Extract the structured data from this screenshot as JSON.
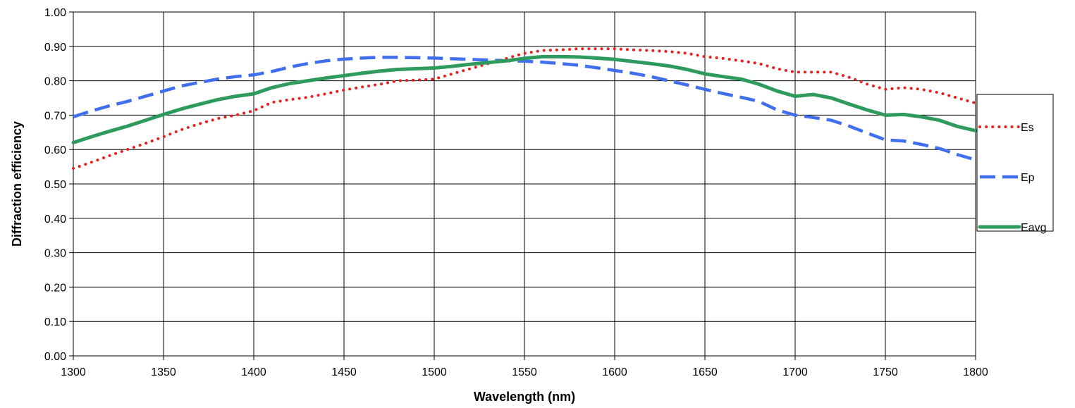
{
  "chart_data": {
    "type": "line",
    "title": "",
    "xlabel": "Wavelength (nm)",
    "ylabel": "Diffraction efficiency",
    "xlim": [
      1300,
      1800
    ],
    "ylim": [
      0,
      1
    ],
    "x_ticks": [
      "1300",
      "1350",
      "1400",
      "1450",
      "1500",
      "1550",
      "1600",
      "1650",
      "1700",
      "1750",
      "1800"
    ],
    "y_ticks": [
      "0.00",
      "0.10",
      "0.20",
      "0.30",
      "0.40",
      "0.50",
      "0.60",
      "0.70",
      "0.80",
      "0.90",
      "1.00"
    ],
    "grid": true,
    "legend_position": "right",
    "x": [
      1300,
      1310,
      1320,
      1330,
      1340,
      1350,
      1360,
      1370,
      1380,
      1390,
      1400,
      1410,
      1420,
      1430,
      1440,
      1450,
      1460,
      1470,
      1480,
      1490,
      1500,
      1510,
      1520,
      1530,
      1540,
      1550,
      1560,
      1570,
      1580,
      1590,
      1600,
      1610,
      1620,
      1630,
      1640,
      1650,
      1660,
      1670,
      1680,
      1690,
      1700,
      1710,
      1720,
      1730,
      1740,
      1750,
      1760,
      1770,
      1780,
      1790,
      1800
    ],
    "series": [
      {
        "name": "Es",
        "color": "#e8201e",
        "style": "dotted",
        "values": [
          0.545,
          0.563,
          0.582,
          0.6,
          0.618,
          0.637,
          0.658,
          0.675,
          0.69,
          0.7,
          0.713,
          0.737,
          0.745,
          0.752,
          0.762,
          0.773,
          0.782,
          0.79,
          0.8,
          0.802,
          0.805,
          0.82,
          0.835,
          0.85,
          0.865,
          0.88,
          0.888,
          0.89,
          0.893,
          0.893,
          0.893,
          0.89,
          0.888,
          0.885,
          0.88,
          0.87,
          0.865,
          0.858,
          0.85,
          0.835,
          0.825,
          0.825,
          0.825,
          0.81,
          0.79,
          0.775,
          0.78,
          0.775,
          0.765,
          0.75,
          0.735
        ]
      },
      {
        "name": "Ep",
        "color": "#3f6fec",
        "style": "dashed",
        "values": [
          0.695,
          0.712,
          0.727,
          0.74,
          0.755,
          0.77,
          0.785,
          0.795,
          0.805,
          0.812,
          0.817,
          0.827,
          0.84,
          0.85,
          0.858,
          0.863,
          0.866,
          0.868,
          0.868,
          0.867,
          0.866,
          0.864,
          0.862,
          0.86,
          0.858,
          0.857,
          0.854,
          0.85,
          0.845,
          0.838,
          0.83,
          0.822,
          0.812,
          0.8,
          0.788,
          0.775,
          0.763,
          0.752,
          0.74,
          0.715,
          0.7,
          0.693,
          0.685,
          0.668,
          0.648,
          0.628,
          0.625,
          0.615,
          0.603,
          0.585,
          0.57
        ]
      },
      {
        "name": "Eavg",
        "color": "#2e9a5e",
        "style": "solid",
        "values": [
          0.62,
          0.637,
          0.653,
          0.668,
          0.685,
          0.702,
          0.718,
          0.732,
          0.745,
          0.755,
          0.762,
          0.78,
          0.792,
          0.8,
          0.808,
          0.815,
          0.822,
          0.828,
          0.833,
          0.835,
          0.837,
          0.842,
          0.848,
          0.853,
          0.858,
          0.865,
          0.87,
          0.87,
          0.869,
          0.866,
          0.862,
          0.856,
          0.85,
          0.843,
          0.833,
          0.82,
          0.812,
          0.805,
          0.79,
          0.77,
          0.755,
          0.76,
          0.75,
          0.732,
          0.715,
          0.7,
          0.702,
          0.695,
          0.685,
          0.667,
          0.655
        ]
      }
    ]
  }
}
